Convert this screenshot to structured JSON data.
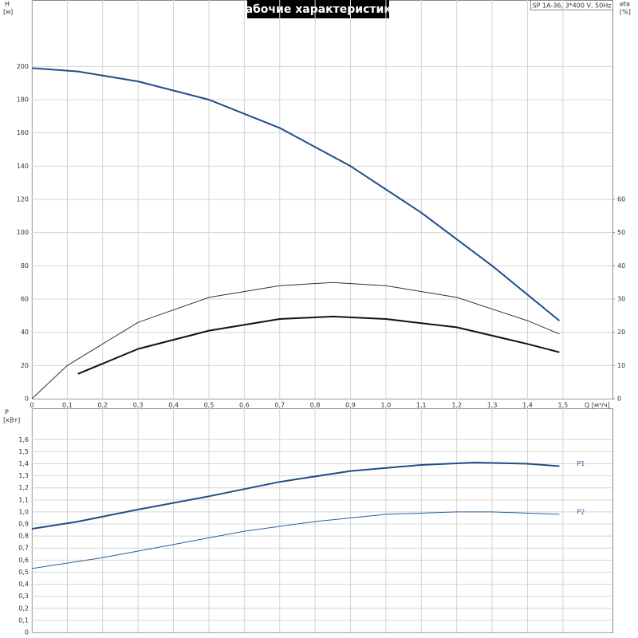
{
  "chart_data": [
    {
      "type": "line",
      "title": "Рабочие характеристики",
      "subtitle": "SP 1A-36, 3*400 V, 50Hz",
      "ylabel": "H",
      "yunit": "[м]",
      "y2label": "eta",
      "y2unit": "[%]",
      "xlabel": "Q [м³/ч]",
      "xlim": [
        0,
        1.64
      ],
      "ylim": [
        0,
        240
      ],
      "y2lim": [
        0,
        120
      ],
      "grid": true,
      "xticks": [
        0,
        {
          "value": 0.1,
          "label": "0,1"
        },
        {
          "value": 0.2,
          "label": "0,2"
        },
        {
          "value": 0.3,
          "label": "0,3"
        },
        {
          "value": 0.4,
          "label": "0,4"
        },
        {
          "value": 0.5,
          "label": "0,5"
        },
        {
          "value": 0.6,
          "label": "0,6"
        },
        {
          "value": 0.7,
          "label": "0,7"
        },
        {
          "value": 0.8,
          "label": "0,8"
        },
        {
          "value": 0.9,
          "label": "0,9"
        },
        {
          "value": 1.0,
          "label": "1,0"
        },
        {
          "value": 1.1,
          "label": "1,1"
        },
        {
          "value": 1.2,
          "label": "1,2"
        },
        {
          "value": 1.3,
          "label": "1,3"
        },
        {
          "value": 1.4,
          "label": "1,4"
        },
        {
          "value": 1.5,
          "label": "1,5"
        }
      ],
      "yticks": [
        0,
        20,
        40,
        60,
        80,
        100,
        120,
        140,
        160,
        180,
        200
      ],
      "y2ticks": [
        0,
        10,
        20,
        30,
        40,
        50,
        60
      ],
      "series": [
        {
          "color": "#1f4e89",
          "width": 2,
          "x": [
            0,
            0.13,
            0.3,
            0.5,
            0.7,
            0.9,
            1.1,
            1.3,
            1.49
          ],
          "values": [
            199,
            197,
            191,
            180,
            163,
            140,
            112,
            80,
            47
          ]
        },
        {
          "color": "#333333",
          "width": 1,
          "axis": "y2",
          "x": [
            0,
            0.1,
            0.3,
            0.5,
            0.7,
            0.85,
            1.0,
            1.2,
            1.4,
            1.49
          ],
          "values": [
            0,
            10,
            23,
            30.5,
            34,
            35,
            34,
            30.5,
            23.5,
            19.5
          ]
        },
        {
          "color": "#111111",
          "width": 2,
          "axis": "y2",
          "x": [
            0.13,
            0.3,
            0.5,
            0.7,
            0.85,
            1.0,
            1.2,
            1.4,
            1.49
          ],
          "values": [
            7.5,
            15,
            20.5,
            24,
            24.75,
            24,
            21.5,
            16.5,
            14
          ]
        }
      ]
    },
    {
      "type": "line",
      "ylabel": "P",
      "yunit": "[кВт]",
      "xlim": [
        0,
        1.64
      ],
      "ylim": [
        0,
        1.86
      ],
      "grid": true,
      "xticks": [
        0,
        0.1,
        0.2,
        0.3,
        0.4,
        0.5,
        0.6,
        0.7,
        0.8,
        0.9,
        1.0,
        1.1,
        1.2,
        1.3,
        1.4,
        1.5
      ],
      "yticks": [
        0,
        {
          "value": 0.1,
          "label": "0,1"
        },
        {
          "value": 0.2,
          "label": "0,2"
        },
        {
          "value": 0.3,
          "label": "0,3"
        },
        {
          "value": 0.4,
          "label": "0,4"
        },
        {
          "value": 0.5,
          "label": "0,5"
        },
        {
          "value": 0.6,
          "label": "0,6"
        },
        {
          "value": 0.7,
          "label": "0,7"
        },
        {
          "value": 0.8,
          "label": "0,8"
        },
        {
          "value": 0.9,
          "label": "0,9"
        },
        {
          "value": 1.0,
          "label": "1,0"
        },
        {
          "value": 1.1,
          "label": "1,1"
        },
        {
          "value": 1.2,
          "label": "1,2"
        },
        {
          "value": 1.3,
          "label": "1,3"
        },
        {
          "value": 1.4,
          "label": "1,4"
        },
        {
          "value": 1.5,
          "label": "1,5"
        },
        {
          "value": 1.6,
          "label": "1,6"
        }
      ],
      "series": [
        {
          "name": "P1",
          "color": "#1f4e89",
          "width": 2,
          "x": [
            0,
            0.13,
            0.3,
            0.5,
            0.7,
            0.9,
            1.1,
            1.25,
            1.4,
            1.49
          ],
          "values": [
            0.86,
            0.92,
            1.02,
            1.13,
            1.25,
            1.34,
            1.39,
            1.41,
            1.4,
            1.38
          ]
        },
        {
          "name": "P2",
          "color": "#2b5d9b",
          "width": 1,
          "x": [
            0,
            0.2,
            0.4,
            0.6,
            0.8,
            1.0,
            1.2,
            1.3,
            1.49
          ],
          "values": [
            0.53,
            0.62,
            0.73,
            0.84,
            0.92,
            0.98,
            1.0,
            1.0,
            0.98
          ]
        }
      ]
    }
  ]
}
